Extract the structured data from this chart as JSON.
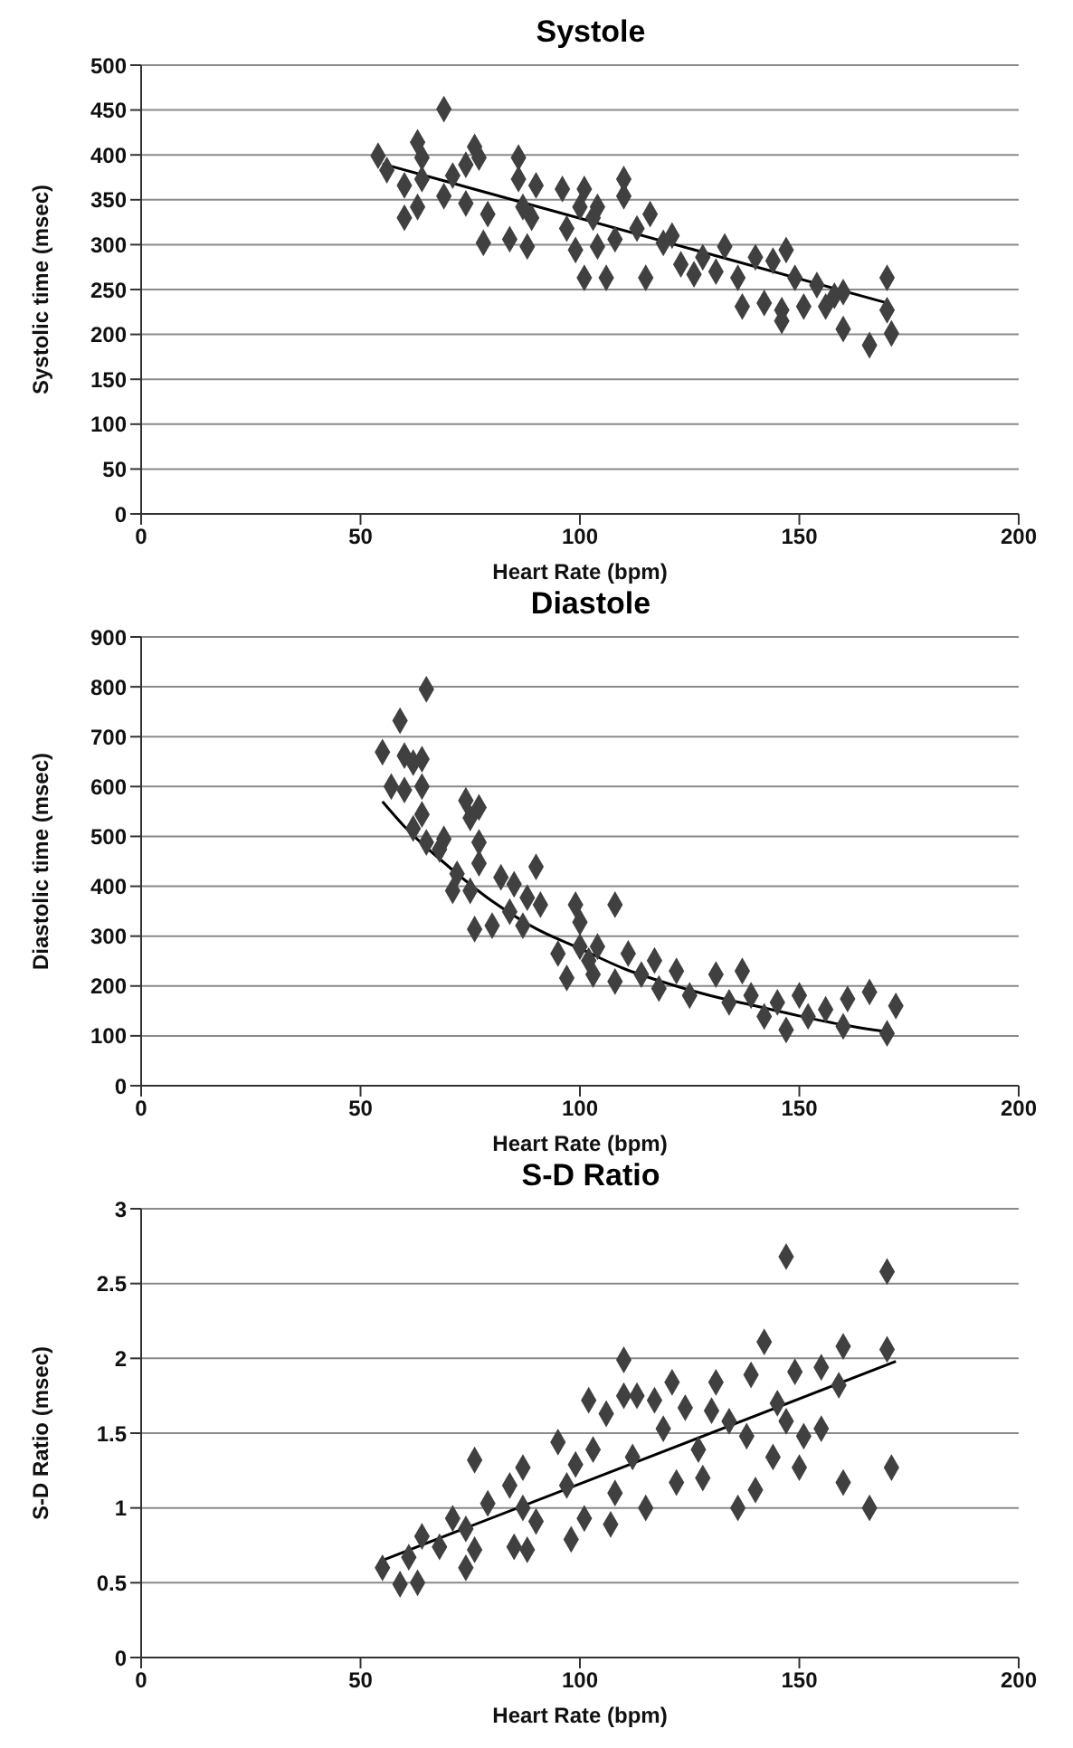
{
  "chart_data": [
    {
      "type": "scatter",
      "title": "Systole",
      "xlabel": "Heart Rate (bpm)",
      "ylabel": "Systolic time (msec)",
      "xlim": [
        0,
        200
      ],
      "xticks": [
        0,
        50,
        100,
        150,
        200
      ],
      "ylim": [
        0,
        500
      ],
      "yticks": [
        0,
        50,
        100,
        150,
        200,
        250,
        300,
        350,
        400,
        450,
        500
      ],
      "grid": "y",
      "marker": "diamond",
      "series": [
        {
          "type": "scatter",
          "color": "#404040",
          "x": [
            54,
            56,
            60,
            60,
            63,
            63,
            64,
            64,
            69,
            69,
            71,
            74,
            74,
            76,
            77,
            78,
            79,
            84,
            86,
            86,
            87,
            88,
            89,
            90,
            96,
            97,
            99,
            100,
            101,
            101,
            103,
            104,
            104,
            106,
            108,
            110,
            110,
            113,
            115,
            116,
            119,
            121,
            123,
            126,
            128,
            131,
            133,
            136,
            137,
            140,
            142,
            144,
            146,
            146,
            147,
            149,
            151,
            154,
            156,
            158,
            160,
            160,
            166,
            170,
            170,
            171
          ],
          "values": [
            399,
            383,
            366,
            330,
            342,
            414,
            397,
            373,
            354,
            451,
            377,
            389,
            346,
            409,
            397,
            302,
            334,
            306,
            397,
            373,
            342,
            298,
            330,
            366,
            362,
            318,
            294,
            342,
            263,
            362,
            330,
            298,
            342,
            263,
            306,
            354,
            373,
            318,
            263,
            334,
            302,
            310,
            278,
            267,
            286,
            270,
            298,
            263,
            231,
            286,
            235,
            282,
            227,
            215,
            294,
            263,
            231,
            255,
            231,
            243,
            247,
            206,
            188,
            263,
            227,
            201
          ]
        },
        {
          "type": "line",
          "color": "#000000",
          "marker": "none",
          "x": [
            55,
            170
          ],
          "values": [
            390,
            235
          ]
        }
      ]
    },
    {
      "type": "scatter",
      "title": "Diastole",
      "xlabel": "Heart Rate (bpm)",
      "ylabel": "Diastolic time (msec)",
      "xlim": [
        0,
        200
      ],
      "xticks": [
        0,
        50,
        100,
        150,
        200
      ],
      "ylim": [
        0,
        900
      ],
      "yticks": [
        0,
        100,
        200,
        300,
        400,
        500,
        600,
        700,
        800,
        900
      ],
      "grid": "y",
      "marker": "diamond",
      "series": [
        {
          "type": "scatter",
          "color": "#404040",
          "x": [
            55,
            57,
            59,
            60,
            60,
            62,
            64,
            65,
            64,
            64,
            62,
            65,
            69,
            68,
            72,
            71,
            74,
            75,
            77,
            77,
            77,
            76,
            80,
            75,
            82,
            85,
            84,
            87,
            90,
            88,
            91,
            95,
            97,
            99,
            100,
            100,
            102,
            103,
            104,
            108,
            108,
            111,
            114,
            117,
            118,
            122,
            125,
            131,
            134,
            137,
            139,
            142,
            145,
            147,
            150,
            152,
            156,
            160,
            161,
            166,
            170,
            172
          ],
          "values": [
            669,
            600,
            732,
            662,
            593,
            648,
            600,
            795,
            655,
            544,
            516,
            488,
            495,
            474,
            425,
            391,
            572,
            537,
            558,
            488,
            446,
            314,
            321,
            391,
            418,
            404,
            349,
            321,
            439,
            377,
            363,
            265,
            216,
            363,
            328,
            279,
            251,
            223,
            279,
            363,
            209,
            265,
            223,
            251,
            195,
            230,
            181,
            223,
            167,
            230,
            181,
            139,
            167,
            112,
            181,
            139,
            153,
            119,
            174,
            188,
            105,
            160
          ]
        },
        {
          "type": "line",
          "color": "#000000",
          "marker": "none",
          "x": [
            55,
            60,
            70,
            80,
            90,
            100,
            110,
            120,
            130,
            140,
            150,
            160,
            170
          ],
          "values": [
            570,
            520,
            440,
            370,
            315,
            275,
            235,
            205,
            180,
            160,
            140,
            122,
            108
          ]
        }
      ]
    },
    {
      "type": "scatter",
      "title": "S-D Ratio",
      "xlabel": "Heart Rate (bpm)",
      "ylabel": "S-D Ratio (msec)",
      "xlim": [
        0,
        200
      ],
      "xticks": [
        0,
        50,
        100,
        150,
        200
      ],
      "ylim": [
        0,
        3
      ],
      "yticks": [
        0,
        0.5,
        1,
        1.5,
        2,
        2.5,
        3
      ],
      "grid": "y",
      "marker": "diamond",
      "series": [
        {
          "type": "scatter",
          "color": "#404040",
          "x": [
            55,
            59,
            61,
            64,
            63,
            68,
            71,
            74,
            74,
            76,
            76,
            79,
            84,
            85,
            87,
            87,
            88,
            90,
            95,
            97,
            98,
            99,
            101,
            102,
            103,
            106,
            107,
            108,
            110,
            110,
            112,
            113,
            115,
            117,
            119,
            121,
            122,
            124,
            127,
            128,
            130,
            131,
            134,
            136,
            138,
            139,
            140,
            142,
            144,
            145,
            147,
            147,
            149,
            150,
            151,
            155,
            155,
            159,
            160,
            160,
            166,
            170,
            170,
            171
          ],
          "values": [
            0.6,
            0.49,
            0.67,
            0.81,
            0.5,
            0.74,
            0.93,
            0.86,
            0.6,
            1.32,
            0.72,
            1.03,
            1.15,
            0.74,
            1.27,
            1.0,
            0.72,
            0.91,
            1.44,
            1.15,
            0.79,
            1.29,
            0.93,
            1.72,
            1.39,
            1.63,
            0.89,
            1.1,
            1.99,
            1.75,
            1.34,
            1.75,
            1.0,
            1.72,
            1.53,
            1.84,
            1.17,
            1.67,
            1.39,
            1.2,
            1.65,
            1.84,
            1.58,
            1.0,
            1.48,
            1.89,
            1.12,
            2.11,
            1.34,
            1.7,
            2.68,
            1.58,
            1.91,
            1.27,
            1.48,
            1.94,
            1.53,
            1.82,
            1.17,
            2.08,
            1.0,
            2.58,
            2.06,
            1.27
          ]
        },
        {
          "type": "line",
          "color": "#000000",
          "marker": "none",
          "x": [
            55,
            172
          ],
          "values": [
            0.65,
            1.98
          ]
        }
      ]
    }
  ]
}
